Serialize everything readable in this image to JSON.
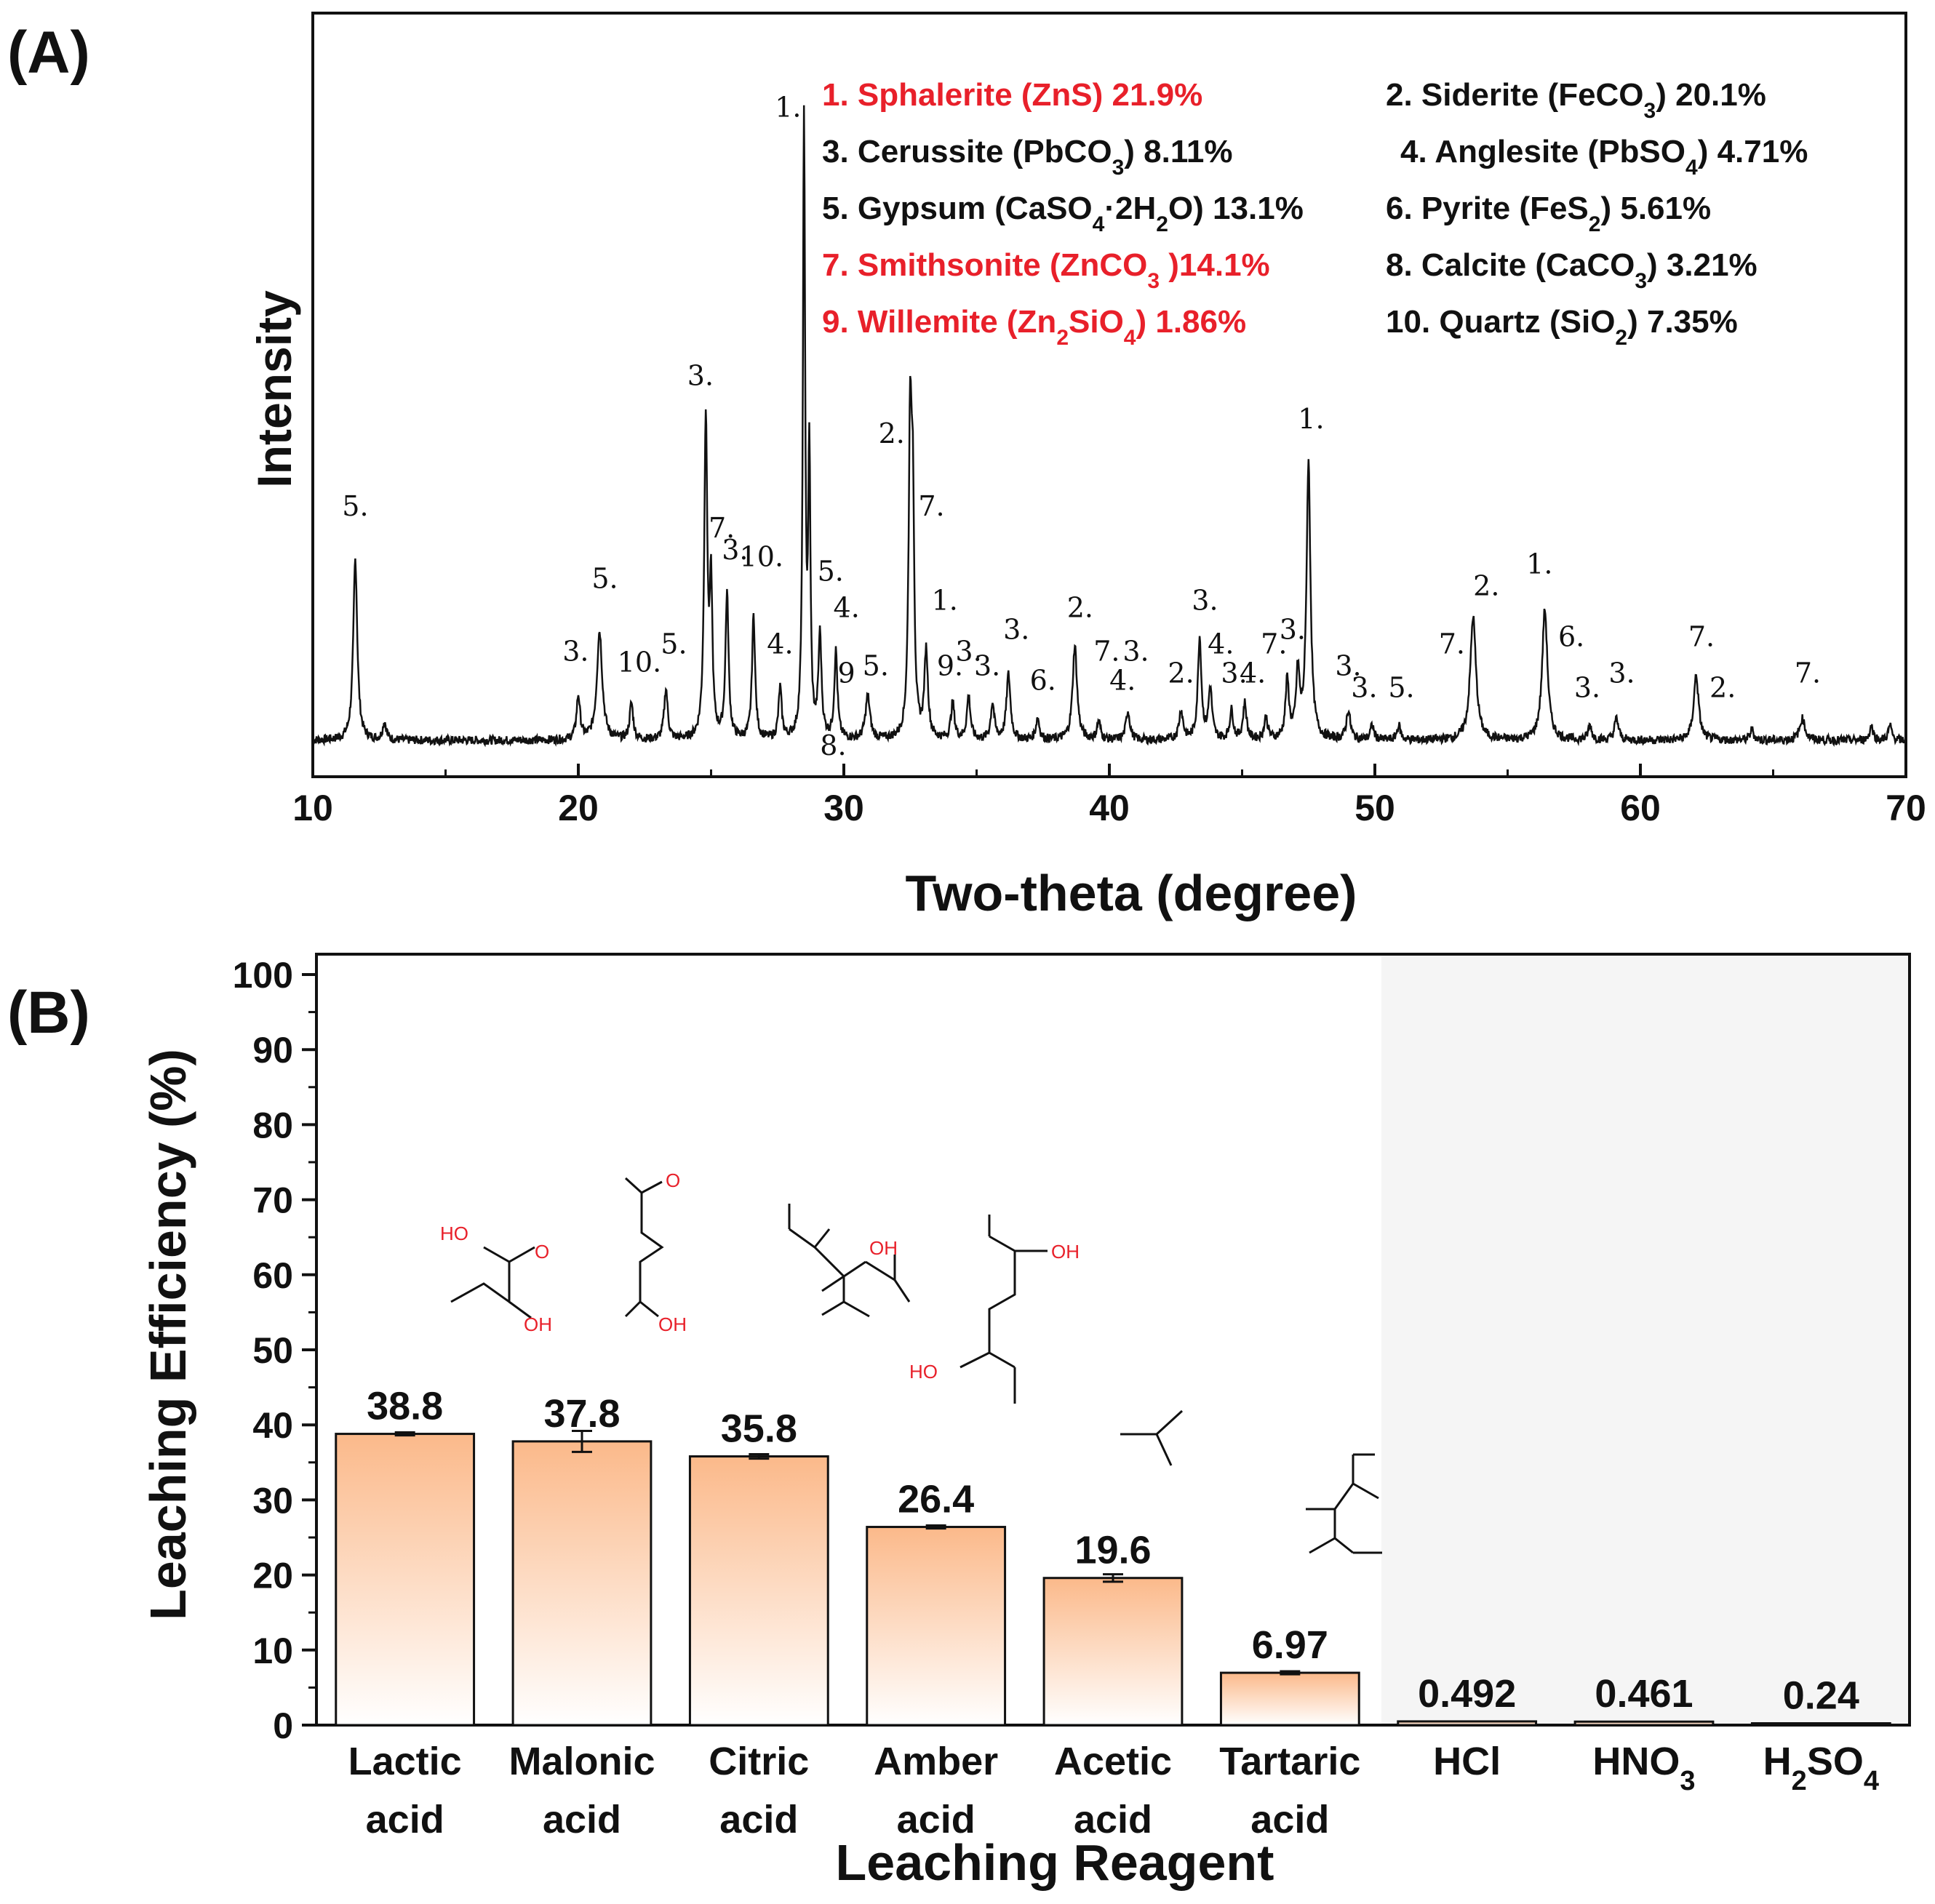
{
  "panel_a": {
    "label": "(A)",
    "chart_data": {
      "type": "line",
      "title": "",
      "xlabel": "Two-theta (degree)",
      "ylabel": "Intensity",
      "xlim": [
        10,
        70
      ],
      "xticks": [
        10,
        20,
        30,
        40,
        50,
        60,
        70
      ],
      "baseline": 0.04,
      "peaks": [
        {
          "x": 11.6,
          "h": 0.25,
          "w": 0.09
        },
        {
          "x": 12.7,
          "h": 0.025,
          "w": 0.08
        },
        {
          "x": 20.0,
          "h": 0.06,
          "w": 0.08
        },
        {
          "x": 20.8,
          "h": 0.15,
          "w": 0.12
        },
        {
          "x": 22.0,
          "h": 0.05,
          "w": 0.08
        },
        {
          "x": 23.3,
          "h": 0.07,
          "w": 0.08
        },
        {
          "x": 24.8,
          "h": 0.44,
          "w": 0.07
        },
        {
          "x": 25.0,
          "h": 0.2,
          "w": 0.06
        },
        {
          "x": 25.6,
          "h": 0.2,
          "w": 0.07
        },
        {
          "x": 26.6,
          "h": 0.17,
          "w": 0.07
        },
        {
          "x": 27.6,
          "h": 0.07,
          "w": 0.07
        },
        {
          "x": 28.5,
          "h": 0.85,
          "w": 0.05
        },
        {
          "x": 28.7,
          "h": 0.38,
          "w": 0.05
        },
        {
          "x": 29.1,
          "h": 0.14,
          "w": 0.07
        },
        {
          "x": 29.7,
          "h": 0.12,
          "w": 0.07
        },
        {
          "x": 30.9,
          "h": 0.06,
          "w": 0.1
        },
        {
          "x": 32.5,
          "h": 0.43,
          "w": 0.07
        },
        {
          "x": 32.6,
          "h": 0.28,
          "w": 0.06
        },
        {
          "x": 33.1,
          "h": 0.12,
          "w": 0.08
        },
        {
          "x": 34.1,
          "h": 0.05,
          "w": 0.08
        },
        {
          "x": 34.7,
          "h": 0.06,
          "w": 0.08
        },
        {
          "x": 35.6,
          "h": 0.05,
          "w": 0.08
        },
        {
          "x": 36.2,
          "h": 0.09,
          "w": 0.09
        },
        {
          "x": 37.3,
          "h": 0.03,
          "w": 0.08
        },
        {
          "x": 38.7,
          "h": 0.13,
          "w": 0.1
        },
        {
          "x": 39.6,
          "h": 0.025,
          "w": 0.08
        },
        {
          "x": 40.7,
          "h": 0.04,
          "w": 0.09
        },
        {
          "x": 42.7,
          "h": 0.04,
          "w": 0.09
        },
        {
          "x": 43.4,
          "h": 0.14,
          "w": 0.08
        },
        {
          "x": 43.8,
          "h": 0.07,
          "w": 0.08
        },
        {
          "x": 44.6,
          "h": 0.04,
          "w": 0.08
        },
        {
          "x": 45.1,
          "h": 0.05,
          "w": 0.08
        },
        {
          "x": 45.9,
          "h": 0.03,
          "w": 0.08
        },
        {
          "x": 46.7,
          "h": 0.08,
          "w": 0.08
        },
        {
          "x": 47.1,
          "h": 0.09,
          "w": 0.08
        },
        {
          "x": 47.5,
          "h": 0.38,
          "w": 0.09
        },
        {
          "x": 49.0,
          "h": 0.04,
          "w": 0.09
        },
        {
          "x": 49.9,
          "h": 0.02,
          "w": 0.08
        },
        {
          "x": 50.9,
          "h": 0.02,
          "w": 0.08
        },
        {
          "x": 53.7,
          "h": 0.17,
          "w": 0.13
        },
        {
          "x": 56.4,
          "h": 0.18,
          "w": 0.12
        },
        {
          "x": 58.1,
          "h": 0.02,
          "w": 0.08
        },
        {
          "x": 59.1,
          "h": 0.03,
          "w": 0.09
        },
        {
          "x": 62.1,
          "h": 0.09,
          "w": 0.11
        },
        {
          "x": 64.2,
          "h": 0.015,
          "w": 0.08
        },
        {
          "x": 66.1,
          "h": 0.03,
          "w": 0.12
        },
        {
          "x": 68.7,
          "h": 0.02,
          "w": 0.08
        },
        {
          "x": 69.4,
          "h": 0.02,
          "w": 0.08
        }
      ],
      "annotations": [
        {
          "text": "5.",
          "x": 11.6,
          "y": 0.31
        },
        {
          "text": "3.",
          "x": 19.9,
          "y": 0.11
        },
        {
          "text": "5.",
          "x": 21.0,
          "y": 0.21
        },
        {
          "text": "10.",
          "x": 22.3,
          "y": 0.095
        },
        {
          "text": "5.",
          "x": 23.6,
          "y": 0.12
        },
        {
          "text": "3.",
          "x": 24.6,
          "y": 0.49
        },
        {
          "text": "7.",
          "x": 25.4,
          "y": 0.28
        },
        {
          "text": "3.",
          "x": 25.9,
          "y": 0.25
        },
        {
          "text": "10.",
          "x": 26.9,
          "y": 0.24
        },
        {
          "text": "4.",
          "x": 27.6,
          "y": 0.12
        },
        {
          "text": "1.",
          "x": 27.9,
          "y": 0.86
        },
        {
          "text": "5.",
          "x": 29.5,
          "y": 0.22
        },
        {
          "text": "4.",
          "x": 30.1,
          "y": 0.17
        },
        {
          "text": "9",
          "x": 30.1,
          "y": 0.08
        },
        {
          "text": "5.",
          "x": 31.2,
          "y": 0.09
        },
        {
          "text": "8.",
          "x": 29.6,
          "y": -0.02
        },
        {
          "text": "2.",
          "x": 31.8,
          "y": 0.41
        },
        {
          "text": "7.",
          "x": 33.3,
          "y": 0.31
        },
        {
          "text": "1.",
          "x": 33.8,
          "y": 0.18
        },
        {
          "text": "9.",
          "x": 34.0,
          "y": 0.09
        },
        {
          "text": "3.",
          "x": 34.7,
          "y": 0.11
        },
        {
          "text": "3.",
          "x": 35.4,
          "y": 0.09
        },
        {
          "text": "3.",
          "x": 36.5,
          "y": 0.14
        },
        {
          "text": "6.",
          "x": 37.5,
          "y": 0.07
        },
        {
          "text": "2.",
          "x": 38.9,
          "y": 0.17
        },
        {
          "text": "7.",
          "x": 39.9,
          "y": 0.11
        },
        {
          "text": "4.",
          "x": 40.5,
          "y": 0.07
        },
        {
          "text": "3.",
          "x": 41.0,
          "y": 0.11
        },
        {
          "text": "2.",
          "x": 42.7,
          "y": 0.08
        },
        {
          "text": "3.",
          "x": 43.6,
          "y": 0.18
        },
        {
          "text": "4.",
          "x": 44.2,
          "y": 0.12
        },
        {
          "text": "3.",
          "x": 44.7,
          "y": 0.08
        },
        {
          "text": "4.",
          "x": 45.4,
          "y": 0.08
        },
        {
          "text": "7.",
          "x": 46.2,
          "y": 0.12
        },
        {
          "text": "3.",
          "x": 46.9,
          "y": 0.14
        },
        {
          "text": "1.",
          "x": 47.6,
          "y": 0.43
        },
        {
          "text": "3.",
          "x": 49.0,
          "y": 0.09
        },
        {
          "text": "3.",
          "x": 49.6,
          "y": 0.06
        },
        {
          "text": "5.",
          "x": 51.0,
          "y": 0.06
        },
        {
          "text": "7.",
          "x": 52.9,
          "y": 0.12
        },
        {
          "text": "2.",
          "x": 54.2,
          "y": 0.2
        },
        {
          "text": "1.",
          "x": 56.2,
          "y": 0.23
        },
        {
          "text": "6.",
          "x": 57.4,
          "y": 0.13
        },
        {
          "text": "3.",
          "x": 58.0,
          "y": 0.06
        },
        {
          "text": "3.",
          "x": 59.3,
          "y": 0.08
        },
        {
          "text": "7.",
          "x": 62.3,
          "y": 0.13
        },
        {
          "text": "2.",
          "x": 63.1,
          "y": 0.06
        },
        {
          "text": "7.",
          "x": 66.3,
          "y": 0.08
        }
      ],
      "legend": [
        {
          "pre": "1. Sphalerite (ZnS) 21.9%",
          "sub": "",
          "post": "",
          "color": "#e8202a"
        },
        {
          "pre": "2. Siderite (FeCO",
          "sub": "3",
          "post": ") 20.1%",
          "color": "#111111"
        },
        {
          "pre": "3. Cerussite (PbCO",
          "sub": "3",
          "post": ") 8.11%",
          "color": "#111111"
        },
        {
          "pre": "4. Anglesite (PbSO",
          "sub": "4",
          "post": ") 4.71%",
          "color": "#111111"
        },
        {
          "pre": "5. Gypsum (CaSO",
          "sub": "4",
          "post": "·2H",
          "sub2": "2",
          "post2": "O) 13.1%",
          "color": "#111111"
        },
        {
          "pre": "6. Pyrite (FeS",
          "sub": "2",
          "post": ") 5.61%",
          "color": "#111111"
        },
        {
          "pre": "7. Smithsonite (ZnCO",
          "sub": "3",
          "post": " )14.1%",
          "color": "#e8202a"
        },
        {
          "pre": "8. Calcite (CaCO",
          "sub": "3",
          "post": ") 3.21%",
          "color": "#111111"
        },
        {
          "pre": "9. Willemite (Zn",
          "sub": "2",
          "post": "SiO",
          "sub2": "4",
          "post2": ") 1.86%",
          "color": "#e8202a"
        },
        {
          "pre": "10. Quartz (SiO",
          "sub": "2",
          "post": ") 7.35%",
          "color": "#111111"
        }
      ]
    }
  },
  "panel_b": {
    "label": "(B)",
    "chart_data": {
      "type": "bar",
      "xlabel": "Leaching Reagent",
      "ylabel": "Leaching Efficiency (%)",
      "ylim": [
        0,
        100
      ],
      "yticks": [
        0,
        10,
        20,
        30,
        40,
        50,
        60,
        70,
        80,
        90,
        100
      ],
      "categories": [
        {
          "line1": "Lactic",
          "line2": "acid"
        },
        {
          "line1": "Malonic",
          "line2": "acid"
        },
        {
          "line1": "Citric",
          "line2": "acid"
        },
        {
          "line1": "Amber",
          "line2": "acid"
        },
        {
          "line1": "Acetic",
          "line2": "acid"
        },
        {
          "line1": "Tartaric",
          "line2": "acid"
        },
        {
          "line1": "HCl",
          "line2": ""
        },
        {
          "line1": "HNO",
          "sub": "3",
          "line2": ""
        },
        {
          "line1": "H",
          "sub": "2",
          "line1b": "SO",
          "sub2": "4",
          "line2": ""
        }
      ],
      "values": [
        38.8,
        37.8,
        35.8,
        26.4,
        19.6,
        6.97,
        0.492,
        0.461,
        0.24
      ],
      "value_labels": [
        "38.8",
        "37.8",
        "35.8",
        "26.4",
        "19.6",
        "6.97",
        "0.492",
        "0.461",
        "0.24"
      ],
      "errors": [
        0.2,
        1.4,
        0.3,
        0.2,
        0.5,
        0.2,
        0,
        0,
        0
      ],
      "bar_gradient": [
        "#fbb98a",
        "#ffffff"
      ],
      "shaded_region_start_index": 6,
      "shaded_color": "#f5f5f5",
      "molecule_labels": [
        "HO",
        "O",
        "OH",
        "O",
        "OH",
        "OH",
        "HO",
        "OH"
      ]
    }
  }
}
